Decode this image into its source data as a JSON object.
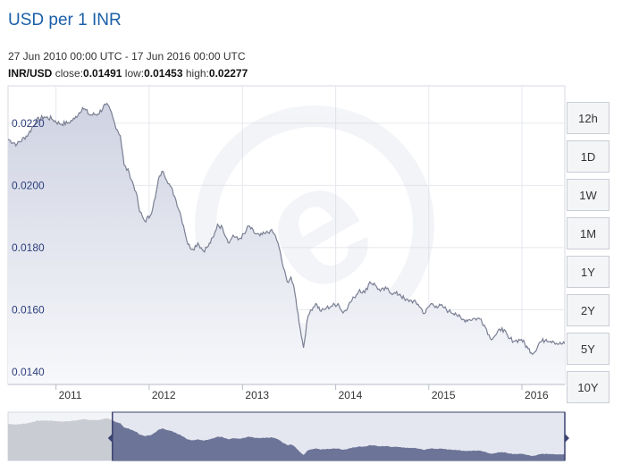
{
  "header": {
    "title": "USD per 1 INR",
    "range": "27 Jun 2010 00:00 UTC - 17 Jun 2016 00:00 UTC",
    "pair": "INR/USD",
    "close_label": "close:",
    "close_value": "0.01491",
    "low_label": "low:",
    "low_value": "0.01453",
    "high_label": "high:",
    "high_value": "0.02277"
  },
  "range_buttons": [
    "12h",
    "1D",
    "1W",
    "1M",
    "1Y",
    "2Y",
    "5Y",
    "10Y"
  ],
  "colors": {
    "line": "#7a7f93",
    "area_top": "#cfd3e2",
    "area_bottom": "#f7f8fb",
    "title": "#1b5fa8",
    "navigator_selected": "#6c7497",
    "navigator_unselected": "#c9ccd3"
  },
  "chart_data": {
    "type": "area",
    "x_ticks": [
      "2011",
      "2012",
      "2013",
      "2014",
      "2015",
      "2016"
    ],
    "y_ticks": [
      "0.0140",
      "0.0160",
      "0.0180",
      "0.0200",
      "0.0220"
    ],
    "xlim": [
      "2010-06-27",
      "2016-06-17"
    ],
    "ylim": [
      0.0136,
      0.0232
    ],
    "grid": true,
    "series": [
      {
        "x": [
          "2010-06-27",
          "2010-08-01",
          "2010-09-15",
          "2010-10-15",
          "2010-11-15",
          "2010-12-15",
          "2011-01-15",
          "2011-02-15",
          "2011-03-15",
          "2011-04-15",
          "2011-05-15",
          "2011-06-15",
          "2011-07-15",
          "2011-08-01",
          "2011-08-20",
          "2011-09-10",
          "2011-09-25",
          "2011-10-15",
          "2011-11-10",
          "2011-11-25",
          "2011-12-15",
          "2012-01-05",
          "2012-01-25",
          "2012-02-10",
          "2012-02-25",
          "2012-03-20",
          "2012-04-10",
          "2012-04-30",
          "2012-05-15",
          "2012-06-01",
          "2012-06-20",
          "2012-07-10",
          "2012-07-31",
          "2012-08-20",
          "2012-09-10",
          "2012-09-25",
          "2012-10-15",
          "2012-11-10",
          "2012-11-25",
          "2012-12-15",
          "2013-01-10",
          "2013-01-25",
          "2013-02-15",
          "2013-03-10",
          "2013-04-01",
          "2013-04-20",
          "2013-05-10",
          "2013-05-25",
          "2013-06-10",
          "2013-06-25",
          "2013-07-10",
          "2013-07-25",
          "2013-08-15",
          "2013-08-28",
          "2013-09-10",
          "2013-09-25",
          "2013-10-15",
          "2013-11-05",
          "2013-11-25",
          "2013-12-15",
          "2014-01-10",
          "2014-01-30",
          "2014-02-20",
          "2014-03-15",
          "2014-04-05",
          "2014-04-25",
          "2014-05-15",
          "2014-06-05",
          "2014-06-25",
          "2014-07-20",
          "2014-08-15",
          "2014-09-10",
          "2014-10-01",
          "2014-10-25",
          "2014-11-20",
          "2014-12-15",
          "2015-01-10",
          "2015-01-30",
          "2015-02-25",
          "2015-03-20",
          "2015-04-15",
          "2015-05-10",
          "2015-06-05",
          "2015-07-01",
          "2015-07-25",
          "2015-08-15",
          "2015-08-30",
          "2015-09-20",
          "2015-10-15",
          "2015-11-10",
          "2015-12-05",
          "2015-12-30",
          "2016-01-25",
          "2016-02-15",
          "2016-03-10",
          "2016-04-05",
          "2016-05-01",
          "2016-05-25",
          "2016-06-17"
        ],
        "values": [
          0.02148,
          0.02132,
          0.02165,
          0.02208,
          0.0222,
          0.02214,
          0.02198,
          0.022,
          0.02214,
          0.0225,
          0.02226,
          0.0223,
          0.0226,
          0.02244,
          0.02196,
          0.0216,
          0.02065,
          0.0204,
          0.0198,
          0.01915,
          0.01885,
          0.01902,
          0.0196,
          0.0203,
          0.02045,
          0.02005,
          0.01965,
          0.01915,
          0.0187,
          0.0181,
          0.01795,
          0.01815,
          0.0179,
          0.01805,
          0.01835,
          0.01875,
          0.01862,
          0.01815,
          0.0184,
          0.01825,
          0.01845,
          0.0187,
          0.01848,
          0.01838,
          0.01845,
          0.01855,
          0.01838,
          0.01798,
          0.01735,
          0.0169,
          0.01705,
          0.01655,
          0.0154,
          0.01478,
          0.0156,
          0.016,
          0.0162,
          0.01595,
          0.01605,
          0.01612,
          0.0162,
          0.0159,
          0.01615,
          0.0164,
          0.01665,
          0.01655,
          0.0169,
          0.0168,
          0.0166,
          0.01668,
          0.01652,
          0.0165,
          0.0163,
          0.0163,
          0.01618,
          0.01588,
          0.0162,
          0.01612,
          0.0161,
          0.01595,
          0.0159,
          0.01568,
          0.01568,
          0.01572,
          0.0157,
          0.01538,
          0.01508,
          0.01518,
          0.01542,
          0.01508,
          0.015,
          0.01505,
          0.01475,
          0.0146,
          0.01495,
          0.01505,
          0.015,
          0.0149,
          0.01491
        ]
      }
    ],
    "navigator": {
      "selected_start": "2011-08-10",
      "selected_end": "2016-06-17"
    }
  }
}
